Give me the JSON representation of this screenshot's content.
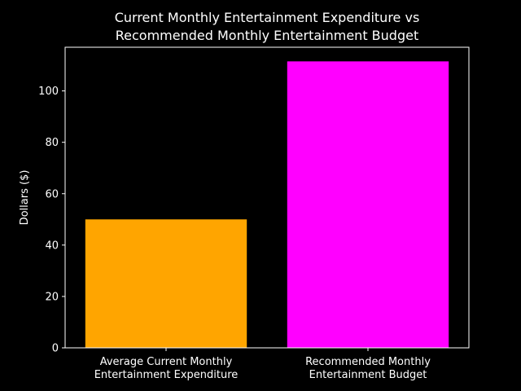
{
  "chart_data": {
    "type": "bar",
    "title": [
      "Current Monthly Entertainment Expenditure vs",
      "Recommended Monthly Entertainment Budget"
    ],
    "categories": [
      [
        "Average Current Monthly",
        "Entertainment Expenditure"
      ],
      [
        "Recommended Monthly",
        "Entertainment Budget"
      ]
    ],
    "values": [
      50,
      111.5
    ],
    "bar_colors": [
      "#FFA500",
      "#FF00FF"
    ],
    "xlabel": "",
    "ylabel": "Dollars ($)",
    "ylim": [
      0,
      117
    ],
    "yticks": [
      0,
      20,
      40,
      60,
      80,
      100
    ],
    "grid": false,
    "legend": "none",
    "colors": {
      "background": "#000000",
      "text": "#FFFFFF",
      "axis": "#FFFFFF"
    }
  }
}
